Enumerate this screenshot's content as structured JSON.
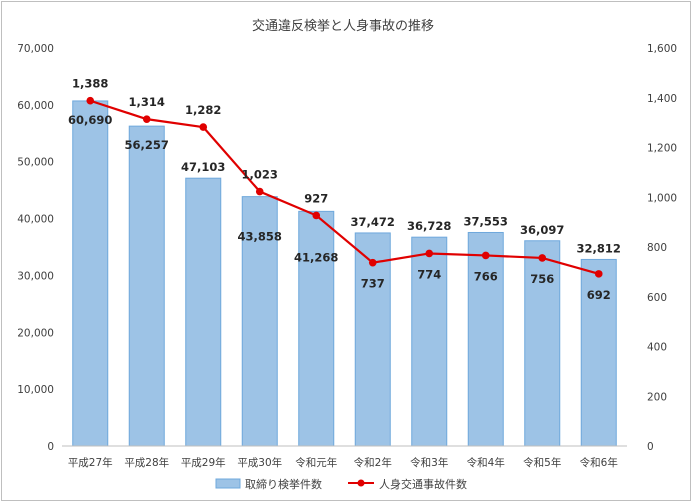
{
  "chart_data": {
    "type": "bar",
    "title": "交通違反検挙と人身事故の推移",
    "categories": [
      "平成27年",
      "平成28年",
      "平成29年",
      "平成30年",
      "令和元年",
      "令和2年",
      "令和3年",
      "令和4年",
      "令和5年",
      "令和6年"
    ],
    "series": [
      {
        "name": "取締り検挙件数",
        "type": "bar",
        "axis": "left",
        "color": "#9dc3e6",
        "values": [
          60690,
          56257,
          47103,
          43858,
          41268,
          37472,
          36728,
          37553,
          36097,
          32812
        ],
        "labels": [
          "60,690",
          "56,257",
          "47,103",
          "43,858",
          "41,268",
          "37,472",
          "36,728",
          "37,553",
          "36,097",
          "32,812"
        ]
      },
      {
        "name": "人身交通事故件数",
        "type": "line",
        "axis": "right",
        "color": "#e00000",
        "values": [
          1388,
          1314,
          1282,
          1023,
          927,
          737,
          774,
          766,
          756,
          692
        ],
        "labels": [
          "1,388",
          "1,314",
          "1,282",
          "1,023",
          "927",
          "737",
          "774",
          "766",
          "756",
          "692"
        ]
      }
    ],
    "y_left": {
      "min": 0,
      "max": 70000,
      "step": 10000,
      "ticks": [
        "0",
        "10,000",
        "20,000",
        "30,000",
        "40,000",
        "50,000",
        "60,000",
        "70,000"
      ]
    },
    "y_right": {
      "min": 0,
      "max": 1600,
      "step": 200,
      "ticks": [
        "0",
        "200",
        "400",
        "600",
        "800",
        "1,000",
        "1,200",
        "1,400",
        "1,600"
      ]
    },
    "grid": false,
    "legend": "bottom"
  }
}
